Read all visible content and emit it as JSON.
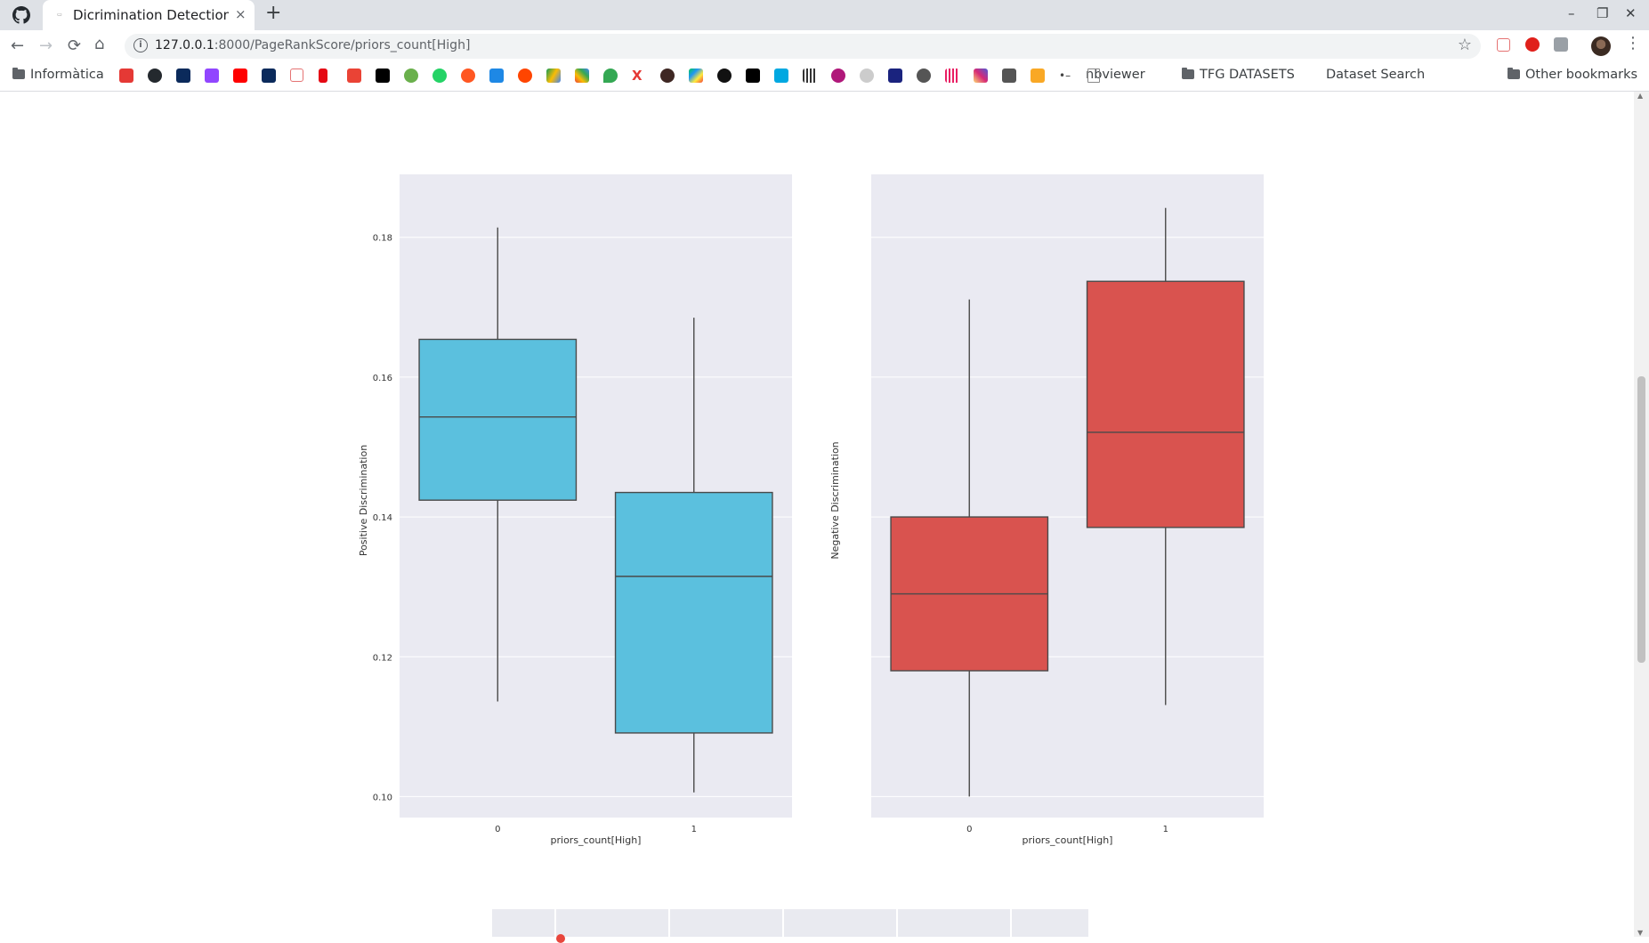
{
  "browser": {
    "tab_title": "Dicrimination Detection -",
    "tab_close": "×",
    "new_tab": "+",
    "url_host": "127.0.0.1",
    "url_rest": ":8000/PageRankScore/priors_count[High]",
    "window_controls": [
      "–",
      "❐",
      "✕"
    ]
  },
  "bookmarks": {
    "informatica": "Informàtica",
    "nbviewer": "nbviewer",
    "tfg": "TFG DATASETS",
    "dataset_search": "Dataset Search",
    "other": "Other bookmarks"
  },
  "icons": {
    "accent_blue": "#5bc0de",
    "accent_red": "#d9534f",
    "plot_bg": "#eaeaf2"
  },
  "chart_data": [
    {
      "type": "box",
      "xlabel": "priors_count[High]",
      "ylabel": "Positive Discrimination",
      "ylim": [
        0.097,
        0.189
      ],
      "yticks": [
        "0.10",
        "0.12",
        "0.14",
        "0.16",
        "0.18"
      ],
      "categories": [
        "0",
        "1"
      ],
      "color": "#5bc0de",
      "boxes": [
        {
          "category": "0",
          "whislo": 0.1136,
          "q1": 0.1424,
          "median": 0.1543,
          "q3": 0.1654,
          "whishi": 0.1814
        },
        {
          "category": "1",
          "whislo": 0.1006,
          "q1": 0.1091,
          "median": 0.1315,
          "q3": 0.1435,
          "whishi": 0.1685
        }
      ]
    },
    {
      "type": "box",
      "xlabel": "priors_count[High]",
      "ylabel": "Negative Discrimination",
      "ylim": [
        0.097,
        0.189
      ],
      "yticks": [],
      "categories": [
        "0",
        "1"
      ],
      "color": "#d9534f",
      "boxes": [
        {
          "category": "0",
          "whislo": 0.1,
          "q1": 0.118,
          "median": 0.129,
          "q3": 0.14,
          "whishi": 0.1711
        },
        {
          "category": "1",
          "whislo": 0.1131,
          "q1": 0.1385,
          "median": 0.1521,
          "q3": 0.1737,
          "whishi": 0.1842
        }
      ]
    }
  ]
}
